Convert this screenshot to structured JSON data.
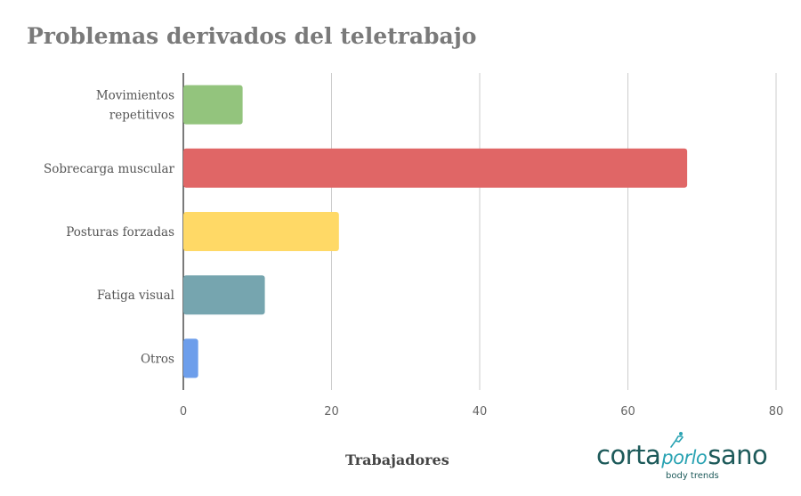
{
  "chart_data": {
    "type": "bar",
    "orientation": "horizontal",
    "title": "Problemas derivados del teletrabajo",
    "xlabel": "Trabajadores",
    "ylabel": "",
    "xlim": [
      0,
      80
    ],
    "ticks": [
      "0",
      "20",
      "40",
      "60",
      "80"
    ],
    "tick_values": [
      0,
      20,
      40,
      60,
      80
    ],
    "grid": true,
    "categories": [
      [
        "Movimientos",
        "repetitivos"
      ],
      [
        "Sobrecarga muscular"
      ],
      [
        "Posturas forzadas"
      ],
      [
        "Fatiga visual"
      ],
      [
        "Otros"
      ]
    ],
    "values": [
      8,
      68,
      21,
      11,
      2
    ],
    "colors": [
      "#93c47d",
      "#e06666",
      "#ffd966",
      "#76a5af",
      "#6d9eeb"
    ]
  },
  "logo": {
    "part1": "corta",
    "part2": "porlo",
    "part3": "sano",
    "tagline": "body trends"
  }
}
